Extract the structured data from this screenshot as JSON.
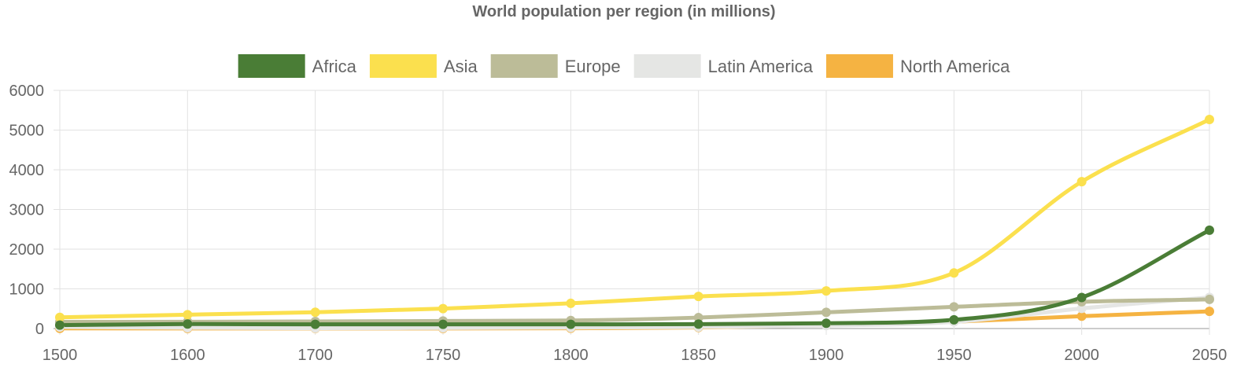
{
  "chart_data": {
    "type": "line",
    "title": "World population per region (in millions)",
    "xlabel": "",
    "ylabel": "",
    "x": [
      1500,
      1600,
      1700,
      1750,
      1800,
      1850,
      1900,
      1950,
      2000,
      2050
    ],
    "x_tick_labels": [
      "1500",
      "1600",
      "1700",
      "1750",
      "1800",
      "1850",
      "1900",
      "1950",
      "2000",
      "2050"
    ],
    "x_scale": "categorical",
    "ylim": [
      0,
      6000
    ],
    "y_ticks": [
      0,
      1000,
      2000,
      3000,
      4000,
      5000,
      6000
    ],
    "grid": true,
    "legend_position": "top",
    "series": [
      {
        "name": "Africa",
        "color": "#4a7d36",
        "values": [
          86,
          114,
          106,
          106,
          107,
          111,
          133,
          221,
          783,
          2478
        ]
      },
      {
        "name": "Asia",
        "color": "#fbe04e",
        "values": [
          282,
          350,
          411,
          502,
          635,
          809,
          947,
          1402,
          3700,
          5267
        ]
      },
      {
        "name": "Europe",
        "color": "#bcbc98",
        "values": [
          168,
          170,
          178,
          190,
          203,
          276,
          408,
          547,
          675,
          734
        ]
      },
      {
        "name": "Latin America",
        "color": "#e5e6e4",
        "values": [
          40,
          20,
          10,
          16,
          24,
          38,
          74,
          167,
          508,
          784
        ]
      },
      {
        "name": "North America",
        "color": "#f5b342",
        "values": [
          6,
          3,
          2,
          2,
          7,
          26,
          82,
          172,
          312,
          433
        ]
      }
    ]
  }
}
